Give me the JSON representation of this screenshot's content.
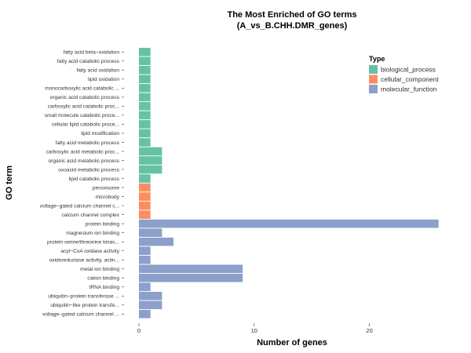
{
  "chart_data": {
    "type": "bar",
    "orientation": "horizontal",
    "title": "The Most Enriched of GO terms",
    "subtitle": "(A_vs_B.CHH.DMR_genes)",
    "xlabel": "Number of genes",
    "ylabel": "GO term",
    "xlim": [
      0,
      26.5
    ],
    "xticks": [
      0,
      10,
      20
    ],
    "grid": false,
    "legend": {
      "title": "Type",
      "position": "top-right",
      "entries": [
        {
          "name": "biological_process",
          "color": "#66C2A5"
        },
        {
          "name": "cellular_component",
          "color": "#FC8D62"
        },
        {
          "name": "molecular_function",
          "color": "#8DA0CB"
        }
      ]
    },
    "categories": [
      "fatty acid beta−oxidation",
      "fatty acid catabolic process",
      "fatty acid oxidation",
      "lipid oxidation",
      "monocarboxylic acid catabolic ...",
      "organic acid catabolic process",
      "carboxylic acid catabolic proc...",
      "small molecule catabolic proce...",
      "cellular lipid catabolic proce...",
      "lipid modification",
      "fatty acid metabolic process",
      "carboxylic acid metabolic proc...",
      "organic acid metabolic process",
      "oxoacid metabolic process",
      "lipid catabolic process",
      "peroxisome",
      "microbody",
      "voltage−gated calcium channel c...",
      "calcium channel complex",
      "protein binding",
      "magnesium ion binding",
      "protein serine/threonine kinas...",
      "acyl−CoA oxidase activity",
      "oxidoreductase activity, actin...",
      "metal ion binding",
      "cation binding",
      "tRNA binding",
      "ubiquitin−protein transferase ...",
      "ubiquitin−like protein transfe...",
      "voltage−gated calcium channel ..."
    ],
    "values": [
      1,
      1,
      1,
      1,
      1,
      1,
      1,
      1,
      1,
      1,
      1,
      2,
      2,
      2,
      1,
      1,
      1,
      1,
      1,
      26,
      2,
      3,
      1,
      1,
      9,
      9,
      1,
      2,
      2,
      1
    ],
    "types": [
      "biological_process",
      "biological_process",
      "biological_process",
      "biological_process",
      "biological_process",
      "biological_process",
      "biological_process",
      "biological_process",
      "biological_process",
      "biological_process",
      "biological_process",
      "biological_process",
      "biological_process",
      "biological_process",
      "biological_process",
      "cellular_component",
      "cellular_component",
      "cellular_component",
      "cellular_component",
      "molecular_function",
      "molecular_function",
      "molecular_function",
      "molecular_function",
      "molecular_function",
      "molecular_function",
      "molecular_function",
      "molecular_function",
      "molecular_function",
      "molecular_function",
      "molecular_function"
    ]
  }
}
